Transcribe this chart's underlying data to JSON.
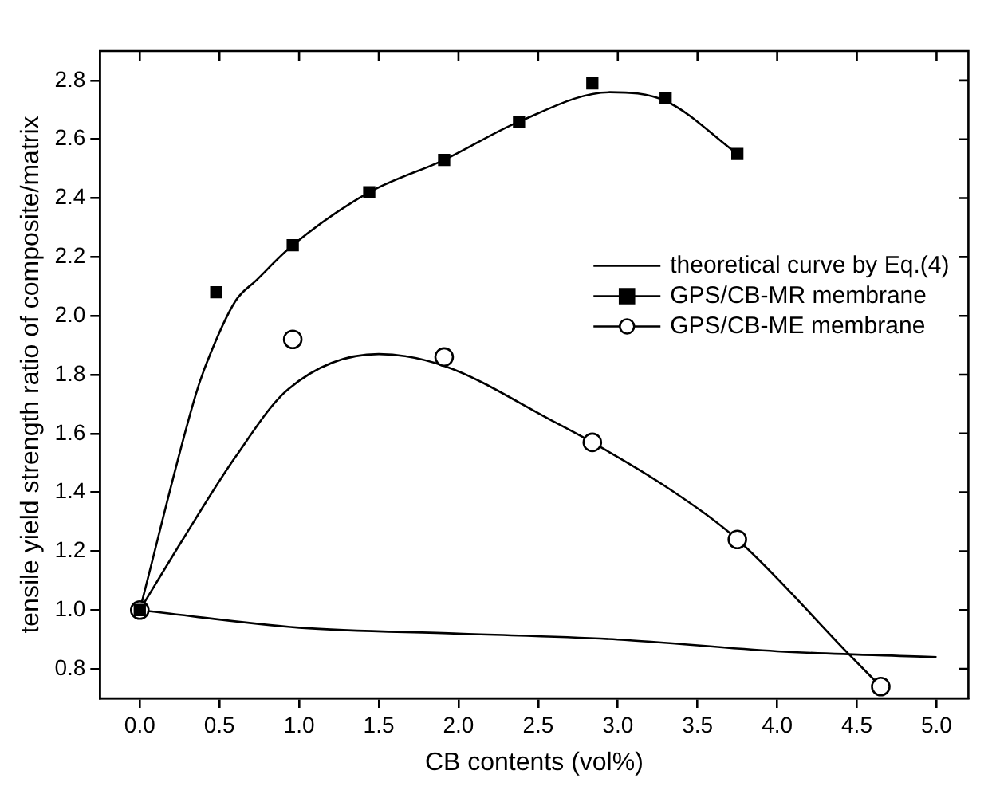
{
  "chart_data": {
    "type": "scatter",
    "xlabel": "CB contents (vol%)",
    "ylabel": "tensile yield strength ratio of composite/matrix",
    "xlim": [
      -0.25,
      5.2
    ],
    "xticks": [
      {
        "value": 0,
        "label": "0.0"
      },
      0.5,
      {
        "value": 1,
        "label": "1.0"
      },
      1.5,
      {
        "value": 2,
        "label": "2.0"
      },
      2.5,
      {
        "value": 3,
        "label": "3.0"
      },
      3.5,
      {
        "value": 4,
        "label": "4.0"
      },
      4.5,
      {
        "value": 5,
        "label": "5.0"
      }
    ],
    "ylim": [
      0.7,
      2.9
    ],
    "yticks": [
      0.8,
      {
        "value": 1,
        "label": "1.0"
      },
      1.2,
      1.4,
      1.6,
      1.8,
      {
        "value": 2,
        "label": "2.0"
      },
      2.2,
      2.4,
      2.6,
      2.8
    ],
    "grid": false,
    "legend": "right",
    "series": [
      {
        "name": "theoretical curve by Eq.(4)",
        "type": "line",
        "marker": "none",
        "color": "#000000",
        "x": [
          0,
          1,
          2,
          3,
          4,
          5
        ],
        "values": [
          1.0,
          0.94,
          0.92,
          0.9,
          0.86,
          0.84
        ]
      },
      {
        "name": "GPS/CB-MR membrane",
        "marker": "square",
        "color": "#000000",
        "x": [
          0,
          0.48,
          0.96,
          1.44,
          1.91,
          2.38,
          2.84,
          3.3,
          3.75
        ],
        "values": [
          1.0,
          2.08,
          2.24,
          2.42,
          2.53,
          2.66,
          2.79,
          2.74,
          2.55
        ]
      },
      {
        "name": "GPS/CB-ME membrane",
        "marker": "circle",
        "color": "#000000",
        "x": [
          0,
          0.96,
          1.91,
          2.84,
          3.75,
          4.65
        ],
        "values": [
          1.0,
          1.92,
          1.86,
          1.57,
          1.24,
          0.74
        ]
      },
      {
        "type": "line",
        "marker": "none",
        "color": "#000000",
        "x": [
          0,
          0.35,
          0.42,
          0.6,
          0.73,
          0.96,
          1.44,
          1.91,
          2.38,
          2.95,
          3.3,
          3.75
        ],
        "values": [
          1.0,
          1.73,
          1.84,
          2.05,
          2.12,
          2.24,
          2.42,
          2.53,
          2.66,
          2.76,
          2.73,
          2.55
        ]
      },
      {
        "type": "line",
        "marker": "none",
        "color": "#000000",
        "x": [
          0,
          0.27,
          0.6,
          0.93,
          1.5,
          1.91,
          2.6,
          2.84,
          3.3,
          3.75,
          4.45,
          4.65
        ],
        "values": [
          1.0,
          1.24,
          1.52,
          1.75,
          1.87,
          1.83,
          1.64,
          1.57,
          1.42,
          1.24,
          0.85,
          0.74
        ]
      }
    ]
  }
}
